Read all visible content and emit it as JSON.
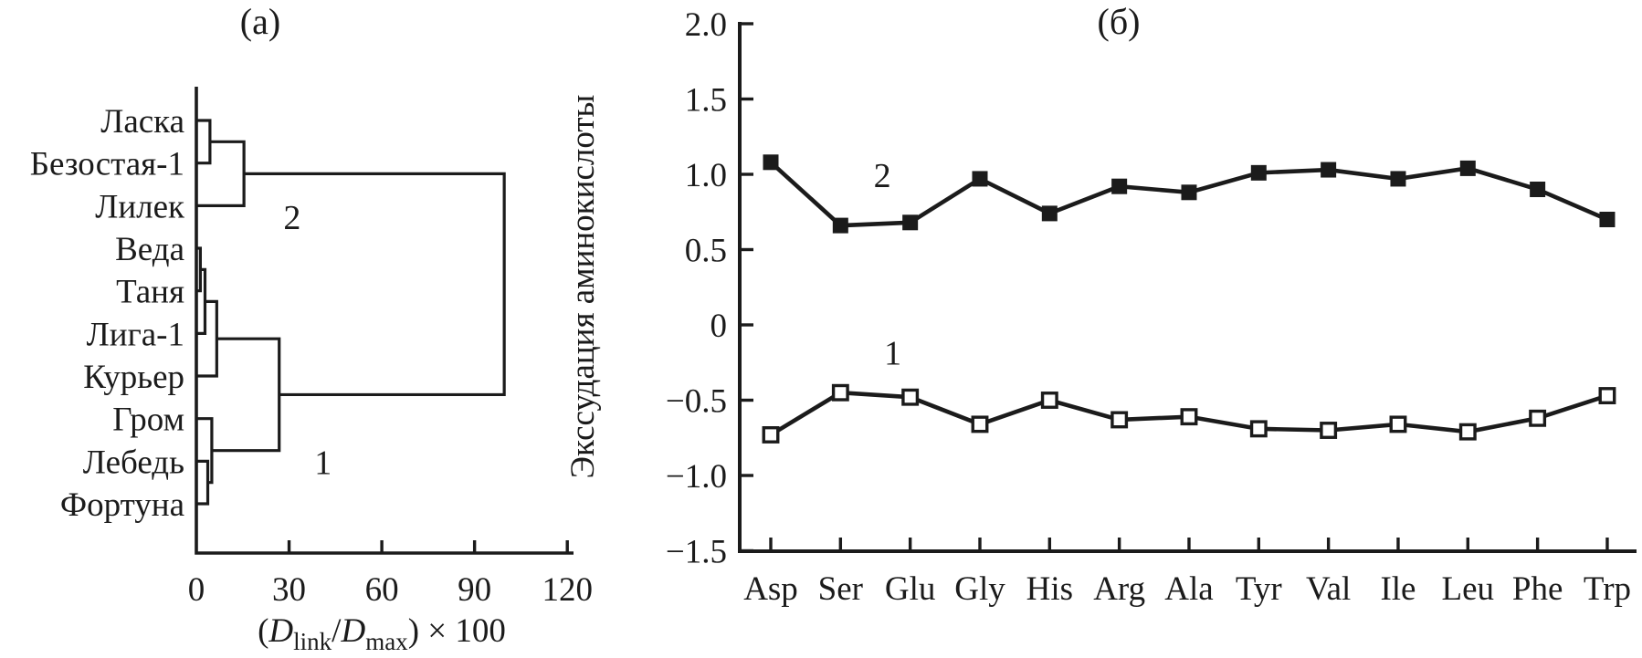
{
  "colors": {
    "ink": "#1b1b1b",
    "background": "#ffffff"
  },
  "chart_data": [
    {
      "type": "dendrogram",
      "title": "(а)",
      "orientation": "horizontal",
      "leaves": [
        "Ласка",
        "Безостая-1",
        "Лилек",
        "Веда",
        "Таня",
        "Лига-1",
        "Курьер",
        "Гром",
        "Лебедь",
        "Фортуна"
      ],
      "merges": [
        {
          "id": "m1",
          "children": [
            "Ласка",
            "Безостая-1"
          ],
          "dist": 4.4
        },
        {
          "id": "m2",
          "children": [
            "m1",
            "Лилек"
          ],
          "dist": 15.4
        },
        {
          "id": "m3",
          "children": [
            "Веда",
            "Таня"
          ],
          "dist": 1.3
        },
        {
          "id": "m4",
          "children": [
            "m3",
            "Лига-1"
          ],
          "dist": 2.8
        },
        {
          "id": "m5",
          "children": [
            "m4",
            "Курьер"
          ],
          "dist": 6.6
        },
        {
          "id": "m6",
          "children": [
            "Лебедь",
            "Фортуна"
          ],
          "dist": 3.7
        },
        {
          "id": "m7",
          "children": [
            "Гром",
            "m6"
          ],
          "dist": 5.0
        },
        {
          "id": "m8",
          "children": [
            "m5",
            "m7"
          ],
          "dist": 26.8
        },
        {
          "id": "m9",
          "children": [
            "m2",
            "m8"
          ],
          "dist": 99.6
        }
      ],
      "cluster_labels": [
        {
          "text": "2",
          "x": 31,
          "row": 2.25
        },
        {
          "text": "1",
          "x": 41,
          "row": 8.0
        }
      ],
      "xticks": [
        0,
        30,
        60,
        90,
        120
      ],
      "xlim": [
        0,
        120
      ],
      "xlabel_plain": "(Dlink/Dmax) × 100",
      "xlabel_parts": [
        {
          "t": "("
        },
        {
          "t": "D",
          "italic": true
        },
        {
          "t": "link",
          "sub": true
        },
        {
          "t": "/"
        },
        {
          "t": "D",
          "italic": true
        },
        {
          "t": "max",
          "sub": true
        },
        {
          "t": ") × 100"
        }
      ],
      "grid": false
    },
    {
      "type": "line",
      "title": "(б)",
      "categories": [
        "Asp",
        "Ser",
        "Glu",
        "Gly",
        "His",
        "Arg",
        "Ala",
        "Tyr",
        "Val",
        "Ile",
        "Leu",
        "Phe",
        "Trp"
      ],
      "series": [
        {
          "name": "2",
          "marker": "filled-square",
          "values": [
            1.08,
            0.66,
            0.68,
            0.97,
            0.74,
            0.92,
            0.88,
            1.01,
            1.03,
            0.97,
            1.04,
            0.9,
            0.7
          ]
        },
        {
          "name": "1",
          "marker": "open-square",
          "values": [
            -0.73,
            -0.45,
            -0.48,
            -0.66,
            -0.5,
            -0.63,
            -0.61,
            -0.69,
            -0.7,
            -0.66,
            -0.71,
            -0.62,
            -0.47
          ]
        }
      ],
      "series_labels": [
        {
          "text": "2",
          "xi": 1.6,
          "value": 1.0
        },
        {
          "text": "1",
          "xi": 1.75,
          "value": -0.18
        }
      ],
      "ylabel": "Экссудация аминокислоты",
      "yticks": [
        2.0,
        1.5,
        1.0,
        0.5,
        0,
        -0.5,
        -1.0,
        -1.5
      ],
      "ylim": [
        -1.5,
        2.0
      ],
      "grid": false,
      "legend": "inline-annotations"
    }
  ]
}
